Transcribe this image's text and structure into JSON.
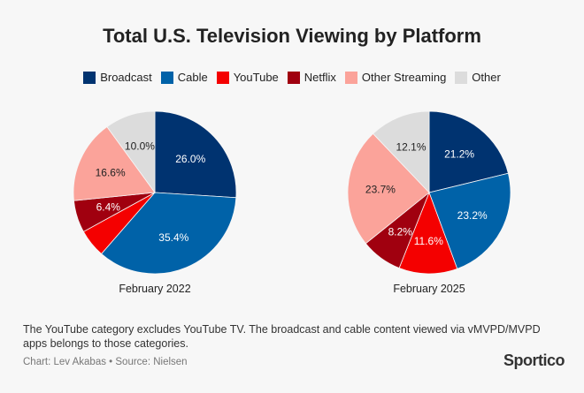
{
  "title": "Total U.S. Television Viewing by Platform",
  "legend": [
    {
      "label": "Broadcast",
      "color": "#003370"
    },
    {
      "label": "Cable",
      "color": "#0062a8"
    },
    {
      "label": "YouTube",
      "color": "#f40000"
    },
    {
      "label": "Netflix",
      "color": "#a0000f"
    },
    {
      "label": "Other Streaming",
      "color": "#fba39a"
    },
    {
      "label": "Other",
      "color": "#dcdcdc"
    }
  ],
  "chart_data": [
    {
      "type": "pie",
      "title": "February 2022",
      "categories": [
        "Broadcast",
        "Cable",
        "YouTube",
        "Netflix",
        "Other Streaming",
        "Other"
      ],
      "values": [
        26.0,
        35.4,
        5.6,
        6.4,
        16.6,
        10.0
      ],
      "labels": [
        "26.0%",
        "35.4%",
        "",
        "6.4%",
        "16.6%",
        "10.0%"
      ]
    },
    {
      "type": "pie",
      "title": "February 2025",
      "categories": [
        "Broadcast",
        "Cable",
        "YouTube",
        "Netflix",
        "Other Streaming",
        "Other"
      ],
      "values": [
        21.2,
        23.2,
        11.6,
        8.2,
        23.7,
        12.1
      ],
      "labels": [
        "21.2%",
        "23.2%",
        "11.6%",
        "8.2%",
        "23.7%",
        "12.1%"
      ]
    }
  ],
  "note": "The YouTube category excludes YouTube TV. The broadcast and cable content viewed via vMVPD/MVPD apps belongs to those categories.",
  "credit": "Chart: Lev Akabas • Source: Nielsen",
  "logo": "Sportico"
}
